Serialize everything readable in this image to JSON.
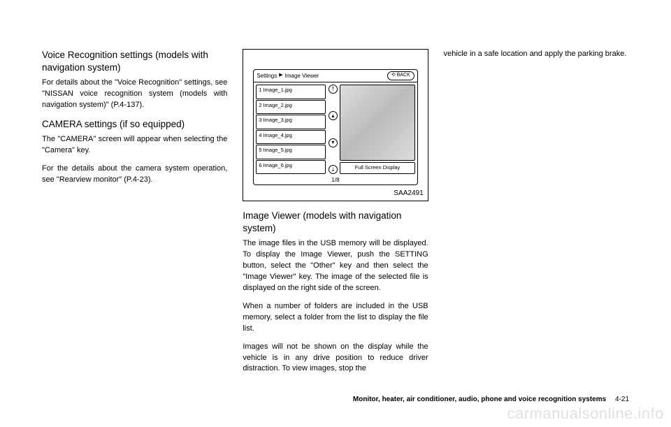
{
  "col1": {
    "h1": "Voice Recognition settings (models with navigation system)",
    "p1": "For details about the \"Voice Recognition\" settings, see \"NISSAN voice recognition system (models with navigation system)\" (P.4-137).",
    "h2": "CAMERA settings (if so equipped)",
    "p2": "The \"CAMERA\" screen will appear when selecting the \"Camera\" key.",
    "p3": "For the details about the camera system operation, see \"Rearview monitor\" (P.4-23)."
  },
  "figure": {
    "breadcrumb1": "Settings",
    "breadcrumb2": "Image Viewer",
    "back": "BACK",
    "files": [
      "1 Image_1.jpg",
      "2 Image_2.jpg",
      "3 Image_3.jpg",
      "4 Image_4.jpg",
      "5 Image_5.jpg",
      "6 Image_6.jpg"
    ],
    "fullscreen": "Full Screen Display",
    "page": "1/8",
    "label": "SAA2491"
  },
  "col2": {
    "h1": "Image Viewer (models with navigation system)",
    "p1": "The image files in the USB memory will be displayed. To display the Image Viewer, push the SETTING button, select the \"Other\" key and then select the \"Image Viewer\" key. The image of the selected file is displayed on the right side of the screen.",
    "p2": "When a number of folders are included in the USB memory, select a folder from the list to display the file list.",
    "p3": "Images will not be shown on the display while the vehicle is in any drive position to reduce driver distraction. To view images, stop the"
  },
  "col3": {
    "p1": "vehicle in a safe location and apply the parking brake."
  },
  "footer": {
    "section": "Monitor, heater, air conditioner, audio, phone and voice recognition systems",
    "page": "4-21"
  },
  "watermark": "carmanualsonline.info"
}
